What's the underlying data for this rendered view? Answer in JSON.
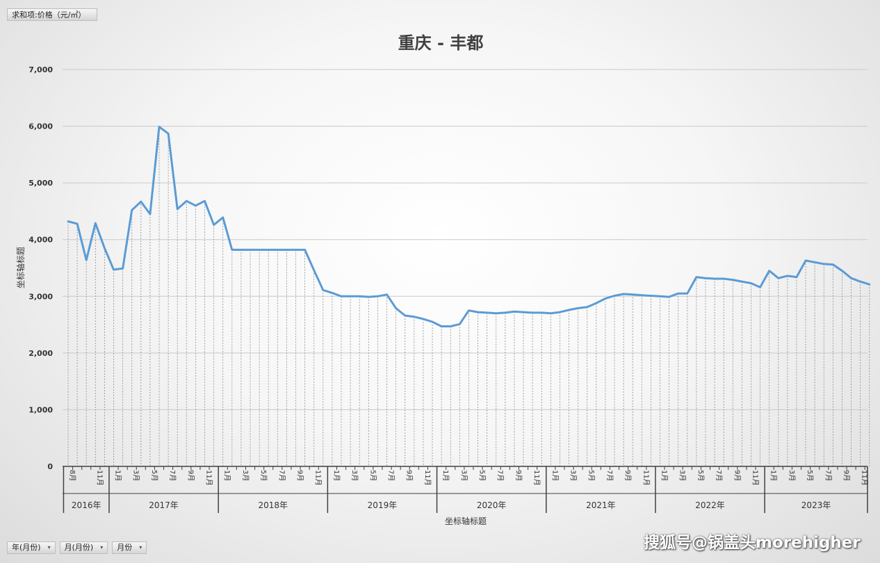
{
  "pivot": {
    "value_field": "求和项:价格（元/㎡）",
    "axis_fields": [
      "年(月份)",
      "月(月份)",
      "月份"
    ]
  },
  "watermark": "搜狐号@锅盖头morehigher",
  "colors": {
    "line": "#5b9bd5",
    "grid": "#c9c9c9",
    "axis": "#404040"
  },
  "chart_data": {
    "type": "line",
    "title": "重庆 - 丰都",
    "xlabel": "坐标轴标题",
    "ylabel": "坐标轴标题",
    "ylim": [
      0,
      7000
    ],
    "yticks": [
      0,
      1000,
      2000,
      3000,
      4000,
      5000,
      6000,
      7000
    ],
    "ytick_labels": [
      "0",
      "1,000",
      "2,000",
      "3,000",
      "4,000",
      "5,000",
      "6,000",
      "7,000"
    ],
    "grid": true,
    "legend": "none",
    "years": [
      {
        "label": "2016年",
        "months": [
          8,
          9,
          10,
          11,
          12
        ]
      },
      {
        "label": "2017年",
        "months": [
          1,
          2,
          3,
          4,
          5,
          6,
          7,
          8,
          9,
          10,
          11,
          12
        ]
      },
      {
        "label": "2018年",
        "months": [
          1,
          2,
          3,
          4,
          5,
          6,
          7,
          8,
          9,
          10,
          11,
          12
        ]
      },
      {
        "label": "2019年",
        "months": [
          1,
          2,
          3,
          4,
          5,
          6,
          7,
          8,
          9,
          10,
          11,
          12
        ]
      },
      {
        "label": "2020年",
        "months": [
          1,
          2,
          3,
          4,
          5,
          6,
          7,
          8,
          9,
          10,
          11,
          12
        ]
      },
      {
        "label": "2021年",
        "months": [
          1,
          2,
          3,
          4,
          5,
          6,
          7,
          8,
          9,
          10,
          11,
          12
        ]
      },
      {
        "label": "2022年",
        "months": [
          1,
          2,
          3,
          4,
          5,
          6,
          7,
          8,
          9,
          10,
          11,
          12
        ]
      },
      {
        "label": "2023年",
        "months": [
          1,
          2,
          3,
          4,
          5,
          6,
          7,
          8,
          9,
          10,
          11,
          12
        ]
      }
    ],
    "month_tick_labels": [
      "1月",
      "3月",
      "5月",
      "7月",
      "8月",
      "9月",
      "11月"
    ],
    "series": [
      {
        "values": [
          4320,
          4280,
          3640,
          4290,
          3850,
          3470,
          3490,
          4520,
          4670,
          4450,
          5990,
          5870,
          4540,
          4680,
          4600,
          4680,
          4260,
          4390,
          3820,
          3820,
          3820,
          3820,
          3820,
          3820,
          3820,
          3820,
          3820,
          3460,
          3110,
          3060,
          3000,
          3000,
          3000,
          2990,
          3000,
          3030,
          2790,
          2660,
          2640,
          2600,
          2550,
          2470,
          2470,
          2510,
          2750,
          2720,
          2710,
          2700,
          2710,
          2730,
          2720,
          2710,
          2710,
          2700,
          2720,
          2760,
          2790,
          2810,
          2880,
          2960,
          3010,
          3040,
          3030,
          3020,
          3010,
          3000,
          2990,
          3050,
          3050,
          3340,
          3320,
          3310,
          3310,
          3290,
          3260,
          3230,
          3160,
          3450,
          3320,
          3360,
          3340,
          3630,
          3600,
          3570,
          3560,
          3450,
          3320,
          3260,
          3210
        ]
      }
    ]
  }
}
